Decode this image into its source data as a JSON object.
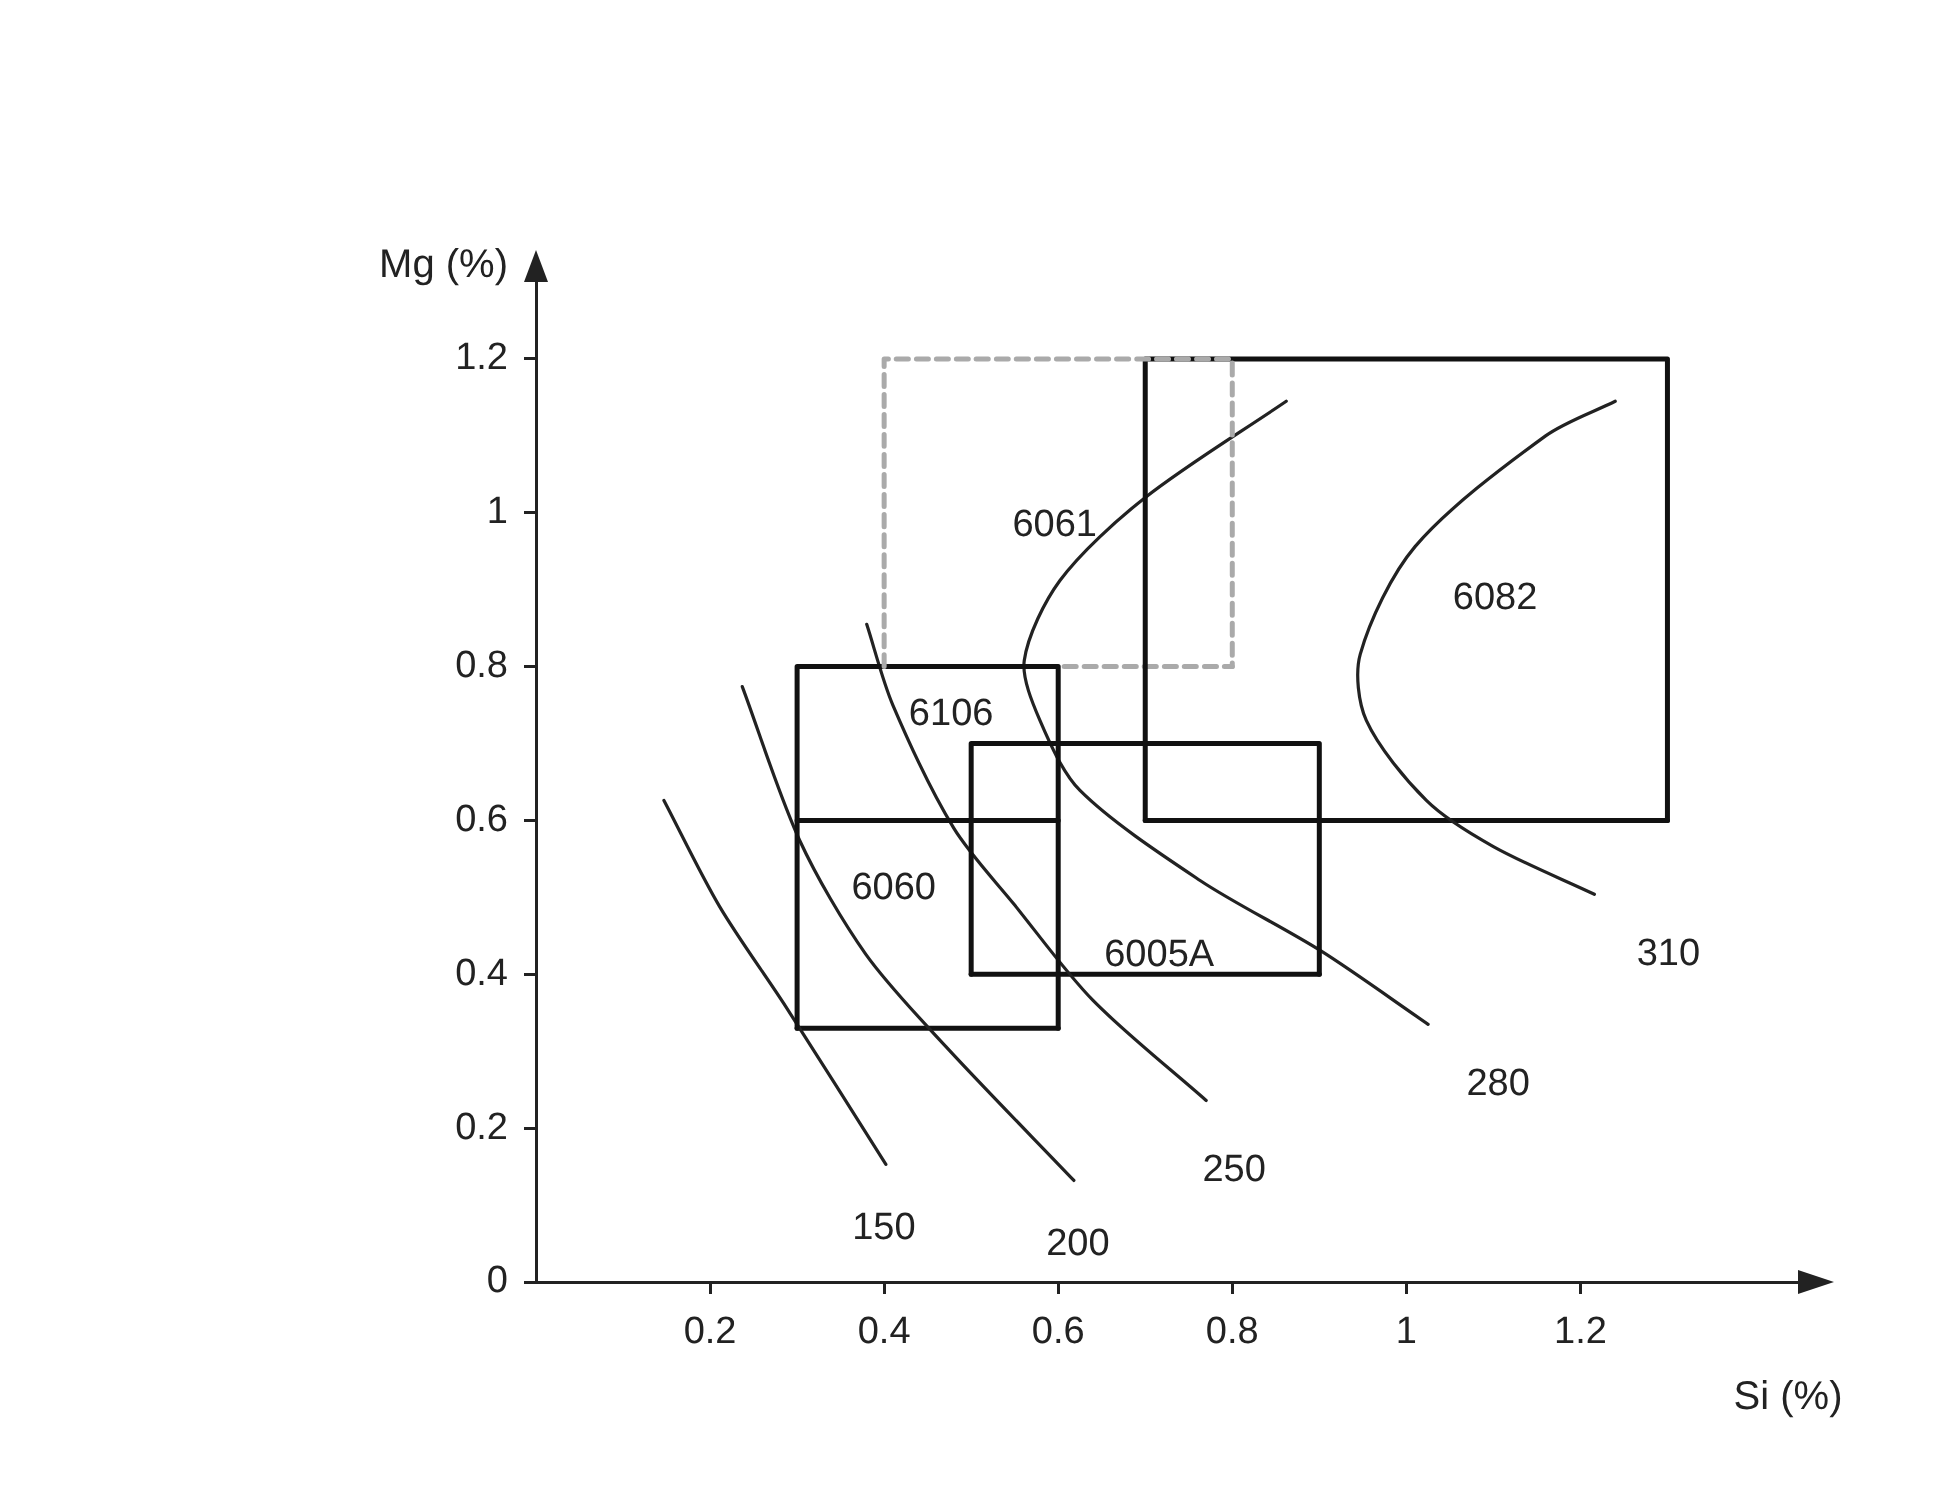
{
  "chart_data": {
    "type": "line",
    "xlabel": "Si (%)",
    "ylabel": "Mg (%)",
    "xlim": [
      0,
      1.45
    ],
    "ylim": [
      0,
      1.3
    ],
    "xticks": [
      0.2,
      0.4,
      0.6,
      0.8,
      1,
      1.2
    ],
    "yticks": [
      0,
      0.2,
      0.4,
      0.6,
      0.8,
      1,
      1.2
    ],
    "grid": false,
    "legend": false,
    "marker": "none",
    "line_style": "solid",
    "series": [
      {
        "color": "#aaaaaa",
        "line_style": "dashed",
        "x": [
          0.4,
          0.4,
          0.8,
          0.8
        ],
        "values": [
          0.8,
          1.2,
          1.2,
          0.8
        ]
      },
      {
        "color": "#111111",
        "x": [
          0.7,
          0.7,
          1.3,
          1.3
        ],
        "values": [
          0.6,
          1.2,
          1.2,
          0.6
        ]
      },
      {
        "color": "#111111",
        "x": [
          0.3,
          0.3,
          0.6,
          0.6
        ],
        "values": [
          0.6,
          0.8,
          0.8,
          0.6
        ]
      },
      {
        "color": "#111111",
        "x": [
          0.3,
          0.3,
          0.6,
          0.6
        ],
        "values": [
          0.33,
          0.6,
          0.6,
          0.33
        ]
      },
      {
        "color": "#111111",
        "x": [
          0.5,
          0.5,
          0.9,
          0.9
        ],
        "values": [
          0.4,
          0.7,
          0.7,
          0.4
        ]
      },
      {
        "name": "150",
        "color": "#222222",
        "x": [
          0.147,
          0.211,
          0.287,
          0.402
        ],
        "values": [
          0.626,
          0.488,
          0.358,
          0.153
        ]
      },
      {
        "name": "200",
        "color": "#222222",
        "x": [
          0.237,
          0.303,
          0.379,
          0.471,
          0.618
        ],
        "values": [
          0.774,
          0.574,
          0.426,
          0.306,
          0.132
        ]
      },
      {
        "name": "250",
        "color": "#222222",
        "x": [
          0.38,
          0.41,
          0.48,
          0.55,
          0.64,
          0.77
        ],
        "values": [
          0.855,
          0.75,
          0.59,
          0.49,
          0.366,
          0.236
        ]
      },
      {
        "name": "280",
        "color": "#222222",
        "x": [
          0.862,
          0.699,
          0.602,
          0.561,
          0.579,
          0.625,
          0.763,
          0.901,
          1.025
        ],
        "values": [
          1.145,
          1.019,
          0.912,
          0.808,
          0.73,
          0.639,
          0.522,
          0.431,
          0.335
        ]
      },
      {
        "name": "310",
        "color": "#222222",
        "x": [
          1.24,
          1.16,
          1.01,
          0.947,
          0.954,
          1.023,
          1.1,
          1.216
        ],
        "values": [
          1.145,
          1.1,
          0.956,
          0.816,
          0.73,
          0.626,
          0.566,
          0.504
        ]
      },
      {
        "color": "#aaaaaa",
        "line_style": "dashed",
        "x": [
          0.4,
          0.8
        ],
        "values": [
          0.8,
          0.8
        ]
      },
      {
        "color": "#111111",
        "x": [
          0.7,
          1.3
        ],
        "values": [
          0.6,
          0.6
        ]
      },
      {
        "color": "#111111",
        "x": [
          0.3,
          0.6
        ],
        "values": [
          0.33,
          0.33
        ]
      },
      {
        "color": "#111111",
        "x": [
          0.5,
          0.9
        ],
        "values": [
          0.4,
          0.4
        ]
      }
    ],
    "annotations": [
      "6061",
      "6082",
      "6106",
      "6060",
      "6005A"
    ]
  }
}
